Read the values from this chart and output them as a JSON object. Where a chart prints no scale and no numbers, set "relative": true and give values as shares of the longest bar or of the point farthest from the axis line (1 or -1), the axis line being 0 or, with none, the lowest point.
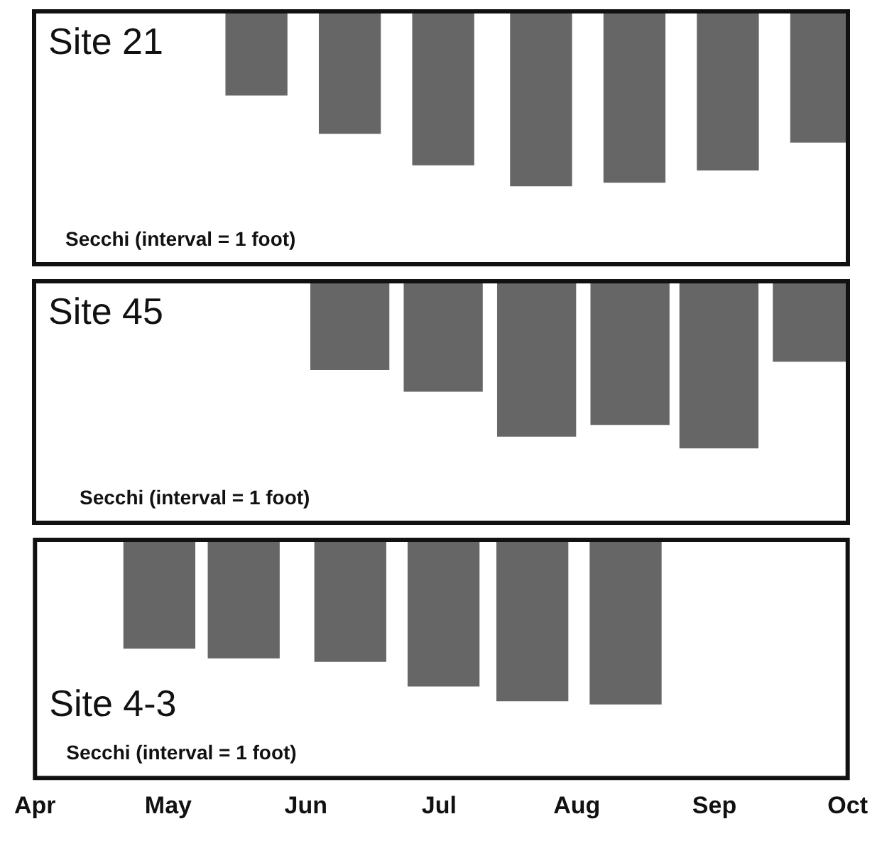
{
  "chart_data": [
    {
      "type": "bar",
      "title": "Site 21",
      "relative": true,
      "color": "#666666",
      "tick_labels": false,
      "annotations": [
        "Secchi (interval = 1 foot)"
      ],
      "xlim": [
        "--04-01",
        "--10-01"
      ],
      "x": [
        "--05-21",
        "--06-11",
        "--07-02",
        "--07-24",
        "--08-14",
        "--09-04",
        "--09-25"
      ],
      "values": [
        -0.48,
        -0.7,
        -0.88,
        -1,
        -0.98,
        -0.91,
        -0.75
      ]
    },
    {
      "type": "bar",
      "title": "Site 45",
      "relative": true,
      "color": "#666666",
      "tick_labels": false,
      "annotations": [
        "Secchi (interval = 1 foot)"
      ],
      "xlim": [
        "--04-01",
        "--10-01"
      ],
      "x": [
        "--06-11",
        "--07-02",
        "--07-23",
        "--08-13",
        "--09-02",
        "--09-23"
      ],
      "values": [
        -0.53,
        -0.66,
        -0.93,
        -0.86,
        -1,
        -0.48
      ]
    },
    {
      "type": "bar",
      "title": "Site 4-3",
      "relative": true,
      "color": "#666666",
      "tick_labels": "x",
      "annotations": [
        "Secchi (interval = 1 foot)"
      ],
      "xlim": [
        "--04-01",
        "--10-01"
      ],
      "xticks": [
        {
          "value": "--04-01",
          "label": "Apr"
        },
        {
          "value": "--05-01",
          "label": "May"
        },
        {
          "value": "--06-01",
          "label": "Jun"
        },
        {
          "value": "--07-01",
          "label": "Jul"
        },
        {
          "value": "--08-01",
          "label": "Aug"
        },
        {
          "value": "--09-01",
          "label": "Sep"
        },
        {
          "value": "--10-01",
          "label": "Oct"
        }
      ],
      "x": [
        "--04-29",
        "--05-18",
        "--06-11",
        "--07-02",
        "--07-22",
        "--08-12"
      ],
      "values": [
        -0.66,
        -0.72,
        -0.74,
        -0.89,
        -0.98,
        -1
      ]
    }
  ]
}
